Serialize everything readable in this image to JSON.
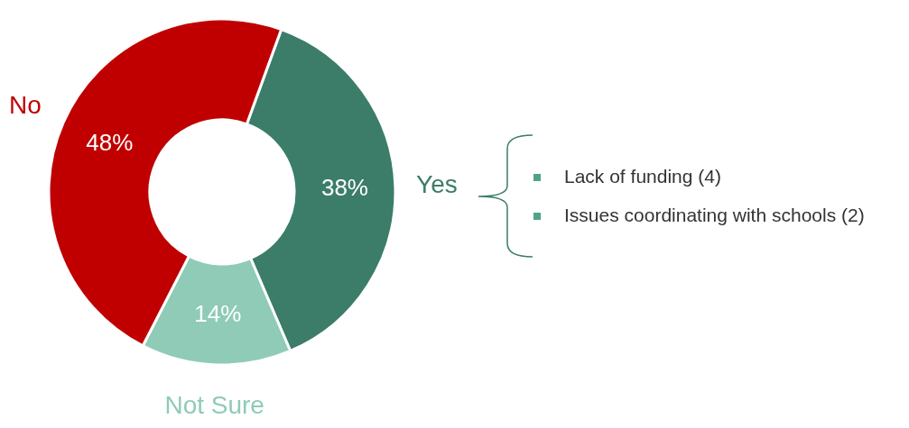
{
  "chart_data": {
    "type": "donut",
    "categories": [
      "Yes",
      "Not Sure",
      "No"
    ],
    "values": [
      38,
      14,
      48
    ],
    "colors": [
      "#3b7d69",
      "#8fcbb6",
      "#c00000"
    ],
    "value_labels": [
      "38%",
      "14%",
      "48%"
    ],
    "annotations": [
      "Lack of funding (4)",
      "Issues coordinating with schools (2)"
    ]
  }
}
